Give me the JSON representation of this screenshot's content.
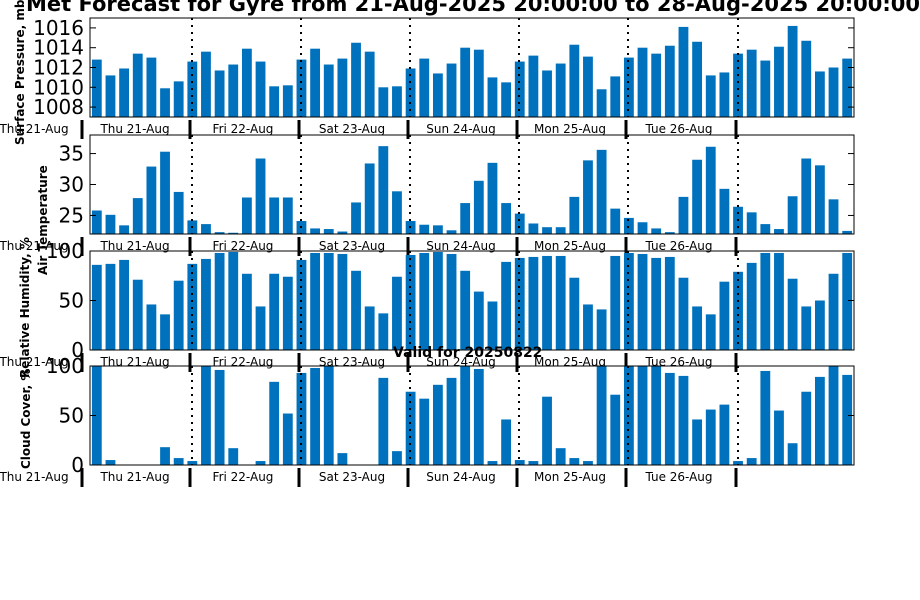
{
  "title": "Met Forecast for Gyre from 21-Aug-2025 20:00:00 to 28-Aug-2025 20:00:00",
  "valid_text": "Valid for 20250822",
  "style": {
    "bar_color": "#0072bd",
    "axis_color": "#000000",
    "background": "#ffffff"
  },
  "chart_data": [
    {
      "type": "bar",
      "ylabel": "Surface Pressure, mb",
      "ylim": [
        1007,
        1017
      ],
      "yticks": [
        1008,
        1010,
        1012,
        1014,
        1016
      ],
      "tick_font": "large",
      "values": [
        1012.8,
        1011.2,
        1011.9,
        1013.4,
        1013.0,
        1009.9,
        1010.6,
        1012.6,
        1013.6,
        1011.7,
        1012.3,
        1013.9,
        1012.6,
        1010.1,
        1010.2,
        1012.8,
        1013.9,
        1012.3,
        1012.9,
        1014.5,
        1013.6,
        1010.0,
        1010.1,
        1011.9,
        1012.9,
        1011.4,
        1012.4,
        1014.0,
        1013.8,
        1011.0,
        1010.5,
        1012.6,
        1013.2,
        1011.7,
        1012.4,
        1014.3,
        1013.1,
        1009.8,
        1011.1,
        1013.0,
        1014.0,
        1013.4,
        1014.2,
        1016.1,
        1014.6,
        1011.2,
        1011.5,
        1013.4,
        1013.8,
        1012.7,
        1014.1,
        1016.2,
        1014.7,
        1011.6,
        1012.0,
        1012.9
      ],
      "day_labels": [
        "Thu 21-Aug",
        "Fri 22-Aug",
        "Sat 23-Aug",
        "Sun 24-Aug",
        "Mon 25-Aug",
        "Tue 26-Aug"
      ],
      "corner_label": "Thu 21-Aug"
    },
    {
      "type": "bar",
      "ylabel": "Air Temperature",
      "ylim": [
        22,
        38
      ],
      "yticks": [
        25,
        30,
        35
      ],
      "tick_font": "large",
      "values": [
        25.8,
        25.1,
        23.4,
        27.8,
        32.9,
        35.3,
        28.8,
        24.2,
        23.6,
        22.3,
        22.2,
        27.9,
        34.2,
        27.9,
        27.9,
        24.1,
        22.9,
        22.8,
        22.4,
        27.1,
        33.4,
        36.2,
        28.9,
        24.1,
        23.5,
        23.4,
        22.6,
        27.0,
        30.6,
        33.5,
        27.0,
        25.3,
        23.7,
        23.1,
        23.1,
        28.0,
        33.9,
        35.6,
        26.1,
        24.6,
        23.9,
        22.9,
        22.3,
        28.0,
        34.0,
        36.1,
        29.3,
        26.4,
        25.5,
        23.6,
        22.8,
        28.1,
        34.2,
        33.1,
        27.6,
        22.5
      ],
      "day_labels": [
        "Thu 21-Aug",
        "Fri 22-Aug",
        "Sat 23-Aug",
        "Sun 24-Aug",
        "Mon 25-Aug",
        "Tue 26-Aug"
      ],
      "corner_label": "Thu 21-Aug"
    },
    {
      "type": "bar",
      "ylabel": "Relative Humidity, %",
      "ylim": [
        0,
        100
      ],
      "yticks": [
        0,
        50,
        100
      ],
      "tick_font": "large",
      "values": [
        86,
        87,
        91,
        71,
        46,
        36,
        70,
        87,
        92,
        98,
        99,
        77,
        44,
        77,
        74,
        91,
        98,
        98,
        97,
        80,
        44,
        37,
        74,
        96,
        98,
        99,
        97,
        80,
        59,
        49,
        89,
        93,
        94,
        95,
        95,
        73,
        46,
        41,
        95,
        98,
        97,
        93,
        94,
        73,
        44,
        36,
        69,
        79,
        88,
        98,
        98,
        72,
        44,
        50,
        77,
        98
      ],
      "day_labels": [
        "Thu 21-Aug",
        "Fri 22-Aug",
        "Sat 23-Aug",
        "Sun 24-Aug",
        "Mon 25-Aug",
        "Tue 26-Aug"
      ],
      "corner_label": "Thu 21-Aug"
    },
    {
      "type": "bar",
      "ylabel": "Cloud Cover, %",
      "ylim": [
        0,
        100
      ],
      "yticks": [
        0,
        50,
        100
      ],
      "tick_font": "large",
      "values": [
        100,
        5,
        0,
        0,
        0,
        18,
        7,
        4,
        100,
        96,
        17,
        0,
        4,
        84,
        52,
        93,
        98,
        100,
        12,
        0,
        0,
        88,
        14,
        74,
        67,
        81,
        88,
        100,
        97,
        4,
        46,
        5,
        4,
        69,
        17,
        7,
        4,
        100,
        71,
        100,
        100,
        100,
        93,
        90,
        46,
        56,
        61,
        4,
        7,
        95,
        55,
        22,
        74,
        89,
        100,
        91
      ],
      "day_labels": [
        "Thu 21-Aug",
        "Fri 22-Aug",
        "Sat 23-Aug",
        "Sun 24-Aug",
        "Mon 25-Aug",
        "Tue 26-Aug"
      ],
      "corner_label": "Thu 21-Aug"
    }
  ]
}
